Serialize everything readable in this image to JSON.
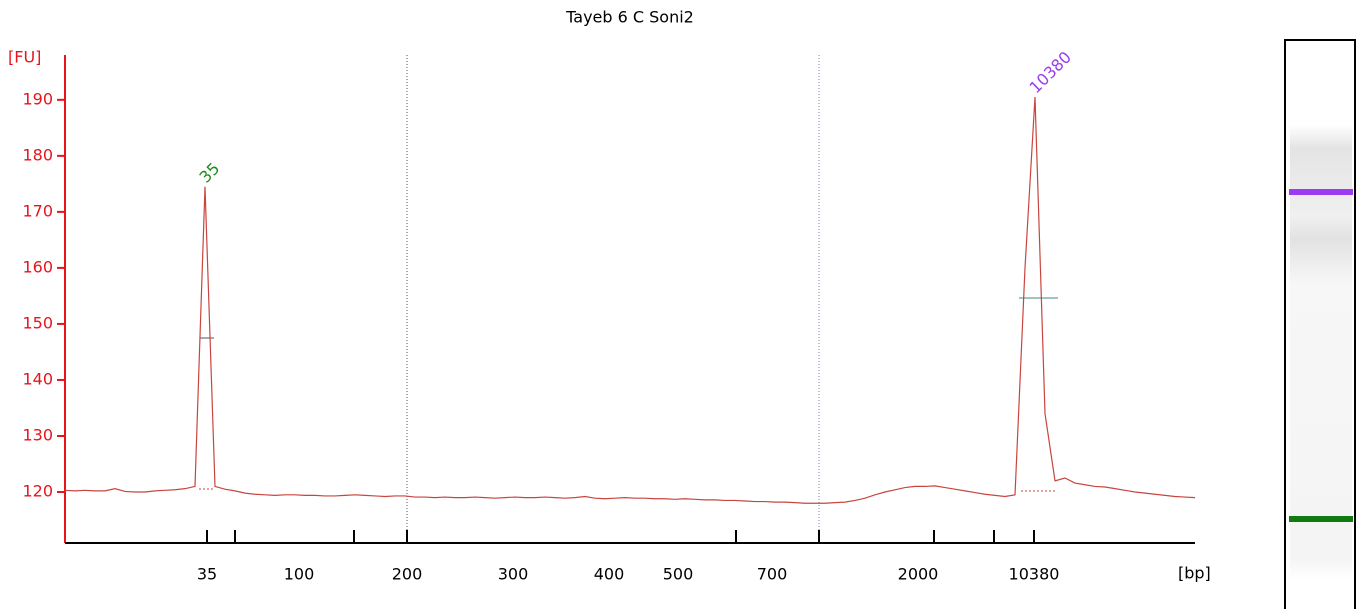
{
  "chart_data": {
    "type": "line",
    "title": "Tayeb 6 C Soni2",
    "y_label": "[FU]",
    "x_label": "[bp]",
    "color": "#c8453f",
    "axis_color": "#e8141c",
    "ylim": [
      110.9,
      198
    ],
    "yticks": [
      120,
      130,
      140,
      150,
      160,
      170,
      180,
      190
    ],
    "xtick_labels": [
      35,
      100,
      200,
      300,
      400,
      500,
      700,
      2000,
      10380
    ],
    "values": [
      120.3,
      120.2,
      120.3,
      120.2,
      120.2,
      120.6,
      120.1,
      120,
      120,
      120.2,
      120.3,
      120.4,
      120.6,
      121,
      174.5,
      121,
      120.5,
      120.2,
      119.8,
      119.6,
      119.5,
      119.4,
      119.5,
      119.5,
      119.4,
      119.4,
      119.3,
      119.3,
      119.4,
      119.5,
      119.4,
      119.3,
      119.2,
      119.3,
      119.3,
      119.1,
      119.1,
      119.0,
      119.1,
      119.0,
      119.0,
      119.1,
      119.0,
      118.9,
      119.0,
      119.1,
      119.0,
      119.0,
      119.1,
      119.0,
      118.9,
      119.0,
      119.2,
      118.9,
      118.8,
      118.9,
      119.0,
      118.9,
      118.9,
      118.8,
      118.8,
      118.7,
      118.8,
      118.7,
      118.6,
      118.6,
      118.5,
      118.5,
      118.4,
      118.3,
      118.3,
      118.2,
      118.2,
      118.1,
      118.0,
      118.0,
      118.0,
      118.1,
      118.2,
      118.5,
      118.9,
      119.5,
      120,
      120.4,
      120.8,
      121,
      121,
      121.1,
      120.8,
      120.5,
      120.2,
      119.9,
      119.6,
      119.4,
      119.2,
      119.5,
      160,
      190.5,
      134,
      122,
      122.5,
      121.6,
      121.3,
      121,
      120.9,
      120.6,
      120.3,
      120,
      119.8,
      119.6,
      119.4,
      119.2,
      119.1,
      119
    ],
    "annotations": [
      {
        "text": "35",
        "color": "#1e8a1e"
      },
      {
        "text": "10380",
        "color": "#9b3cf0"
      }
    ]
  }
}
